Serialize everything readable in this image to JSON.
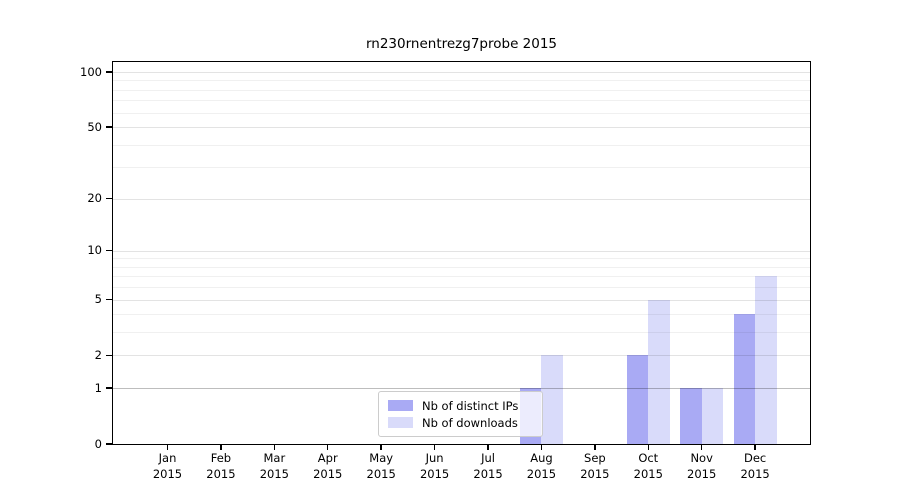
{
  "figure": {
    "background": "#ffffff"
  },
  "chart_data": {
    "type": "bar",
    "title": "rn230rnentrezg7probe 2015",
    "categories": [
      "Jan",
      "Feb",
      "Mar",
      "Apr",
      "May",
      "Jun",
      "Jul",
      "Aug",
      "Sep",
      "Oct",
      "Nov",
      "Dec"
    ],
    "year_label": "2015",
    "series": [
      {
        "name": "Nb of distinct IPs",
        "color": "#a9aaf4",
        "values": [
          0,
          0,
          0,
          0,
          0,
          0,
          0,
          1,
          0,
          2,
          1,
          4
        ]
      },
      {
        "name": "Nb of downloads",
        "color": "#d9dbfa",
        "values": [
          0,
          0,
          0,
          0,
          0,
          0,
          0,
          2,
          0,
          5,
          1,
          7
        ]
      }
    ],
    "y_axis": {
      "scale": "log10(1+y)",
      "major_ticks": [
        0,
        1,
        2,
        5,
        10,
        20,
        50,
        100
      ],
      "minor_gridlines": [
        3,
        4,
        6,
        7,
        8,
        9,
        30,
        40,
        60,
        70,
        80,
        90
      ],
      "ymax": 113
    },
    "x_axis": {
      "tick_label_lines": [
        "month",
        "year"
      ]
    },
    "legend": {
      "position": "lower-center-inside"
    },
    "grid": true
  }
}
